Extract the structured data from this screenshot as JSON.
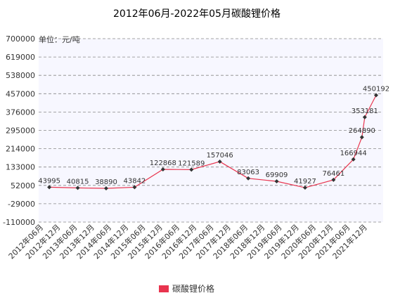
{
  "chart_data": {
    "type": "line",
    "title": "2012年06月-2022年05月碳酸锂价格",
    "y_label": "单位：元/吨",
    "categories": [
      "2012年06月",
      "2012年12月",
      "2013年06月",
      "2013年12月",
      "2014年06月",
      "2014年12月",
      "2015年06月",
      "2015年12月",
      "2016年06月",
      "2016年12月",
      "2017年06月",
      "2017年12月",
      "2018年06月",
      "2018年12月",
      "2019年06月",
      "2019年12月",
      "2020年06月",
      "2020年12月",
      "2021年06月",
      "2021年12月"
    ],
    "ylim": [
      -110000,
      700000
    ],
    "yticks": [
      -110000,
      -29000,
      52000,
      133000,
      214000,
      295000,
      376000,
      457000,
      538000,
      619000,
      700000
    ],
    "grid": true,
    "legend": "bottom",
    "series": [
      {
        "name": "碳酸锂价格",
        "color": "#e8344e",
        "x": [
          "2012年09月",
          "2013年07月",
          "2014年05月",
          "2015年03月",
          "2016年01月",
          "2016年11月",
          "2017年09月",
          "2018年07月",
          "2019年05月",
          "2020年03月",
          "2021年01月",
          "2021年08月",
          "2021年11月",
          "2021年12月",
          "2022年04月"
        ],
        "values": [
          43995,
          40815,
          38890,
          43842,
          122868,
          121589,
          157046,
          83063,
          69909,
          41927,
          76461,
          166944,
          264890,
          353181,
          450192
        ]
      }
    ]
  }
}
